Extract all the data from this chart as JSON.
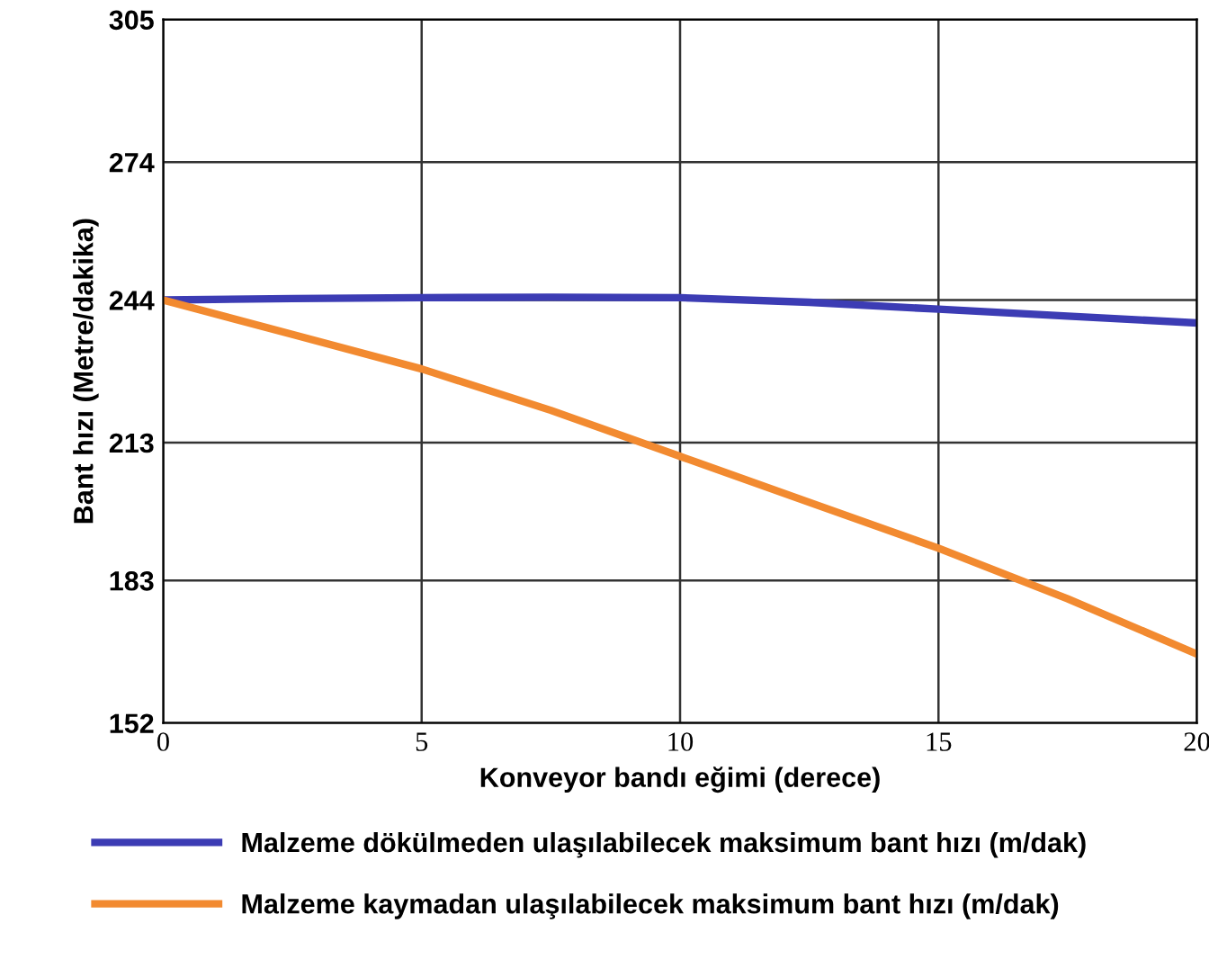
{
  "chart_data": {
    "type": "line",
    "xlabel": "Konveyor bandı eğimi (derece)",
    "ylabel": "Bant hızı (Metre/dakika)",
    "x": [
      0,
      2.5,
      5,
      7.5,
      10,
      12.5,
      15,
      17.5,
      20
    ],
    "series": [
      {
        "name": "Malzeme dökülmeden ulaşılabilecek maksimum bant hızı (m/dak)",
        "color": "#3c3cb4",
        "values": [
          244,
          244.3,
          244.5,
          244.6,
          244.5,
          243.5,
          242,
          240.5,
          239
        ]
      },
      {
        "name": "Malzeme kaymadan ulaşılabilecek maksimum bant hızı (m/dak)",
        "color": "#f28a30",
        "values": [
          244,
          236.5,
          229,
          220,
          210,
          200,
          190,
          179,
          167
        ]
      }
    ],
    "xlim": [
      0,
      20
    ],
    "xticks": [
      0,
      5,
      10,
      15,
      20
    ],
    "ylim": [
      152,
      305
    ],
    "yticks": [
      152,
      183,
      213,
      244,
      274,
      305
    ],
    "grid": true,
    "legend": "bottom",
    "line_style": "solid",
    "marker": "none"
  }
}
